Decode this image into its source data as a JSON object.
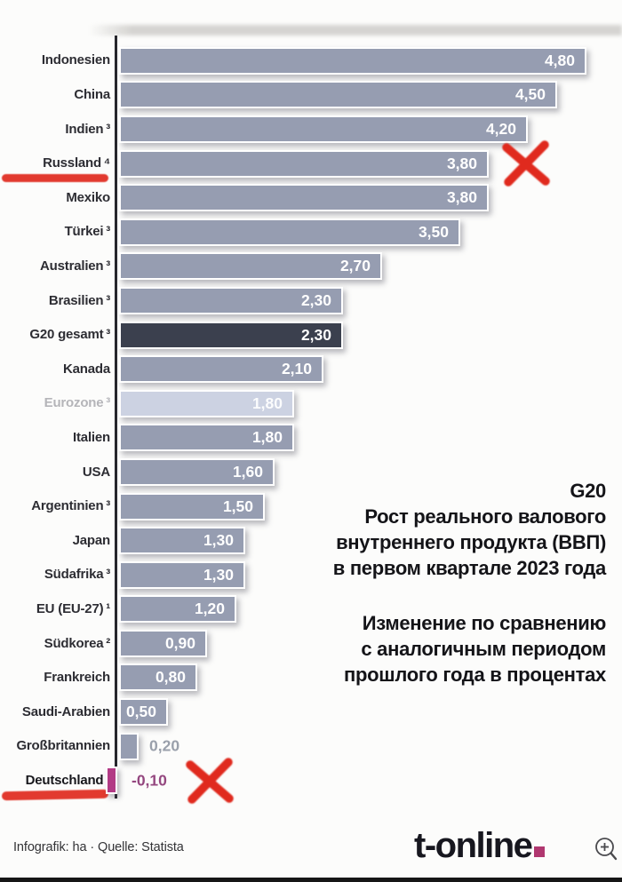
{
  "chart_data": {
    "type": "bar",
    "orientation": "horizontal",
    "title": "G20 Рост реального валового внутреннего продукта (ВВП) в первом квартале 2023 года",
    "subtitle": "Изменение по сравнению с аналогичным периодом прошлого года в процентах",
    "unit": "percent",
    "xlim": [
      -0.2,
      4.9
    ],
    "grid": false,
    "legend": "none",
    "categories": [
      "Indonesien",
      "China",
      "Indien ³",
      "Russland ⁴",
      "Mexiko",
      "Türkei ³",
      "Australien ³",
      "Brasilien ³",
      "G20 gesamt ³",
      "Kanada",
      "Eurozone ³",
      "Italien",
      "USA",
      "Argentinien ³",
      "Japan",
      "Südafrika ³",
      "EU (EU-27) ¹",
      "Südkorea ²",
      "Frankreich",
      "Saudi-Arabien",
      "Großbritannien",
      "Deutschland ²"
    ],
    "values": [
      4.8,
      4.5,
      4.2,
      3.8,
      3.8,
      3.5,
      2.7,
      2.3,
      2.3,
      2.1,
      1.8,
      1.8,
      1.6,
      1.5,
      1.3,
      1.3,
      1.2,
      0.9,
      0.8,
      0.5,
      0.2,
      -0.1
    ],
    "rows": [
      {
        "label": "Indonesien",
        "sup": "",
        "value": 4.8,
        "display": "4,80"
      },
      {
        "label": "China",
        "sup": "",
        "value": 4.5,
        "display": "4,50"
      },
      {
        "label": "Indien",
        "sup": "3",
        "value": 4.2,
        "display": "4,20"
      },
      {
        "label": "Russland",
        "sup": "4",
        "value": 3.8,
        "display": "3,80",
        "underline": true,
        "x_mark": true
      },
      {
        "label": "Mexiko",
        "sup": "",
        "value": 3.8,
        "display": "3,80"
      },
      {
        "label": "Türkei",
        "sup": "3",
        "value": 3.5,
        "display": "3,50"
      },
      {
        "label": "Australien",
        "sup": "3",
        "value": 2.7,
        "display": "2,70"
      },
      {
        "label": "Brasilien",
        "sup": "3",
        "value": 2.3,
        "display": "2,30"
      },
      {
        "label": "G20 gesamt",
        "sup": "3",
        "value": 2.3,
        "display": "2,30",
        "variant": "dark"
      },
      {
        "label": "Kanada",
        "sup": "",
        "value": 2.1,
        "display": "2,10"
      },
      {
        "label": "Eurozone",
        "sup": "3",
        "value": 1.8,
        "display": "1,80",
        "variant": "light",
        "label_muted": true
      },
      {
        "label": "Italien",
        "sup": "",
        "value": 1.8,
        "display": "1,80"
      },
      {
        "label": "USA",
        "sup": "",
        "value": 1.6,
        "display": "1,60"
      },
      {
        "label": "Argentinien",
        "sup": "3",
        "value": 1.5,
        "display": "1,50"
      },
      {
        "label": "Japan",
        "sup": "",
        "value": 1.3,
        "display": "1,30"
      },
      {
        "label": "Südafrika",
        "sup": "3",
        "value": 1.3,
        "display": "1,30"
      },
      {
        "label": "EU (EU-27)",
        "sup": "1",
        "value": 1.2,
        "display": "1,20"
      },
      {
        "label": "Südkorea",
        "sup": "2",
        "value": 0.9,
        "display": "0,90"
      },
      {
        "label": "Frankreich",
        "sup": "",
        "value": 0.8,
        "display": "0,80"
      },
      {
        "label": "Saudi-Arabien",
        "sup": "",
        "value": 0.5,
        "display": "0,50"
      },
      {
        "label": "Großbritannien",
        "sup": "",
        "value": 0.2,
        "display": "0,20",
        "value_outside": true
      },
      {
        "label": "Deutschland",
        "sup": "2",
        "value": -0.1,
        "display": "-0,10",
        "variant": "negative",
        "label_bold": true,
        "underline": true,
        "x_mark": true
      }
    ]
  },
  "annotation": {
    "title_lines": [
      "G20",
      "Рост реального валового",
      "внутреннего продукта (ВВП)",
      "в первом квартале 2023 года"
    ],
    "subtitle_lines": [
      "Изменение по сравнению",
      "с аналогичным периодом",
      "прошлого года в процентах"
    ]
  },
  "footer": {
    "credit": "Infografik: ha · Quelle: Statista",
    "logo_text": "t-online"
  },
  "colors": {
    "bar_default": "#969db1",
    "bar_dark": "#3b404e",
    "bar_light": "#ccd2e2",
    "bar_negative": "#b23a85",
    "value_inside": "#ffffff",
    "value_outside": "#9aa0ab",
    "value_negative": "#94477f",
    "marker_red": "#e02a1e",
    "brand_magenta": "#b0376f",
    "axis": "#27272d",
    "label": "#2d2d33",
    "label_muted": "#b5b5b9"
  }
}
